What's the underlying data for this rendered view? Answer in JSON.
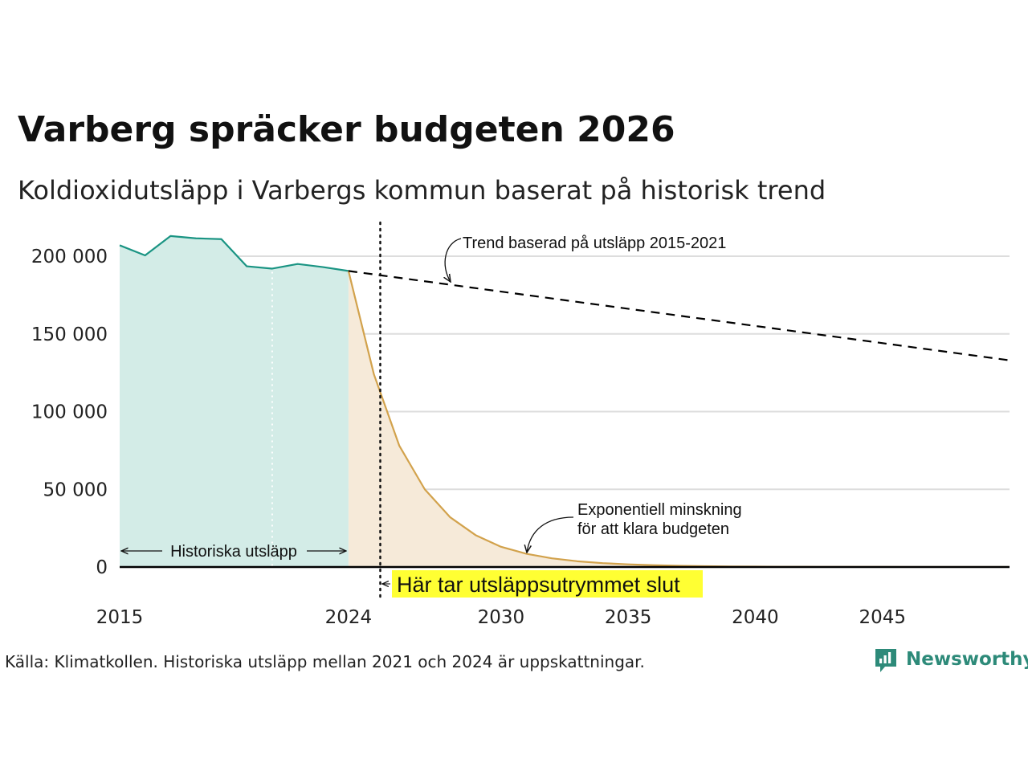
{
  "header": {
    "title": "Varberg spräcker budgeten 2026",
    "subtitle": "Koldioxidutsläpp i Varbergs kommun baserat på historisk trend"
  },
  "footer": {
    "source": "Källa: Klimatkollen. Historiska utsläpp mellan 2021 och 2024 är uppskattningar.",
    "brand": "Newsworthy"
  },
  "colors": {
    "historical_line": "#1a9483",
    "historical_fill": "#d3ece7",
    "budget_line": "#d2a24c",
    "budget_fill": "#f6ead9",
    "trend_line": "#000000",
    "grid": "#dddddd",
    "highlight": "#ffff33",
    "brand": "#2d8a79"
  },
  "chart_data": {
    "type": "area",
    "xlim": [
      2015,
      2050
    ],
    "ylim": [
      0,
      210000
    ],
    "x_ticks": [
      {
        "value": 2015,
        "label": "2015"
      },
      {
        "value": 2024,
        "label": "2024"
      },
      {
        "value": 2030,
        "label": "2030"
      },
      {
        "value": 2035,
        "label": "2035"
      },
      {
        "value": 2040,
        "label": "2040"
      },
      {
        "value": 2045,
        "label": "2045"
      }
    ],
    "y_ticks": [
      {
        "value": 0,
        "label": "0"
      },
      {
        "value": 50000,
        "label": "50 000"
      },
      {
        "value": 100000,
        "label": "100 000"
      },
      {
        "value": 150000,
        "label": "150 000"
      },
      {
        "value": 200000,
        "label": "200 000"
      }
    ],
    "grid": true,
    "series": [
      {
        "key": "historical",
        "type": "area",
        "x": [
          2015,
          2016,
          2017,
          2018,
          2019,
          2020,
          2021,
          2022,
          2023,
          2024
        ],
        "values": [
          207000,
          200500,
          213000,
          211500,
          211000,
          193500,
          192000,
          195000,
          193000,
          190500
        ]
      },
      {
        "key": "budget",
        "type": "area",
        "x": [
          2024,
          2025,
          2026,
          2027,
          2028,
          2029,
          2030,
          2031,
          2032,
          2033,
          2034,
          2035,
          2036,
          2037,
          2038,
          2039,
          2040,
          2041,
          2042,
          2043,
          2044,
          2045,
          2046,
          2047,
          2048,
          2049,
          2050
        ],
        "values": [
          190500,
          124000,
          78000,
          50000,
          32000,
          20500,
          13000,
          8500,
          5600,
          3700,
          2500,
          1700,
          1150,
          780,
          530,
          360,
          250,
          170,
          120,
          90,
          70,
          55,
          45,
          40,
          35,
          30,
          28
        ]
      },
      {
        "key": "trend",
        "type": "line",
        "style": "dashed",
        "x": [
          2024,
          2050
        ],
        "values": [
          190500,
          133000
        ]
      }
    ],
    "markers": [
      {
        "key": "budget_end",
        "x": 2025.25,
        "style": "dotted"
      },
      {
        "key": "estimate_start",
        "x": 2021,
        "style": "dotted"
      }
    ],
    "annotations": {
      "trend": "Trend baserad på utsläpp 2015-2021",
      "exp_line1": "Exponentiell minskning",
      "exp_line2": "för att klara budgeten",
      "historical": "Historiska utsläpp",
      "budget_end": "Här tar utsläppsutrymmet slut"
    }
  }
}
